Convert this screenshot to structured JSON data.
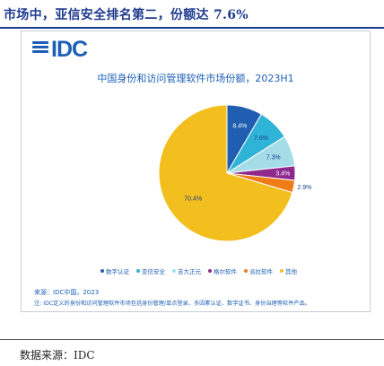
{
  "heading": "市场中，亚信安全排名第二，份额达 7.6%",
  "logo": {
    "text": "IDC"
  },
  "chart_data": {
    "type": "pie",
    "title": "中国身份和访问管理软件市场份额，2023H1",
    "categories": [
      "数字认证",
      "亚信安全",
      "吉大正元",
      "格尔软件",
      "派拉软件",
      "其他"
    ],
    "values": [
      8.4,
      7.6,
      7.3,
      3.4,
      2.9,
      70.4
    ],
    "data_labels": [
      "8.4%",
      "7.6%",
      "7.3%",
      "3.4%",
      "2.9%",
      "70.4%"
    ],
    "colors": [
      "#1f5eb0",
      "#2fb3d6",
      "#a4dde8",
      "#8e2a8e",
      "#f07c18",
      "#f2bf1f"
    ],
    "legend_position": "bottom"
  },
  "source_line": "来源：IDC中国，2023",
  "note_line": "注: IDC定义的身份和访问管理软件市场包括身份管理/单点登录、多因素认证、数字证书、身份治理等软件产品。",
  "footer": "数据来源：IDC"
}
